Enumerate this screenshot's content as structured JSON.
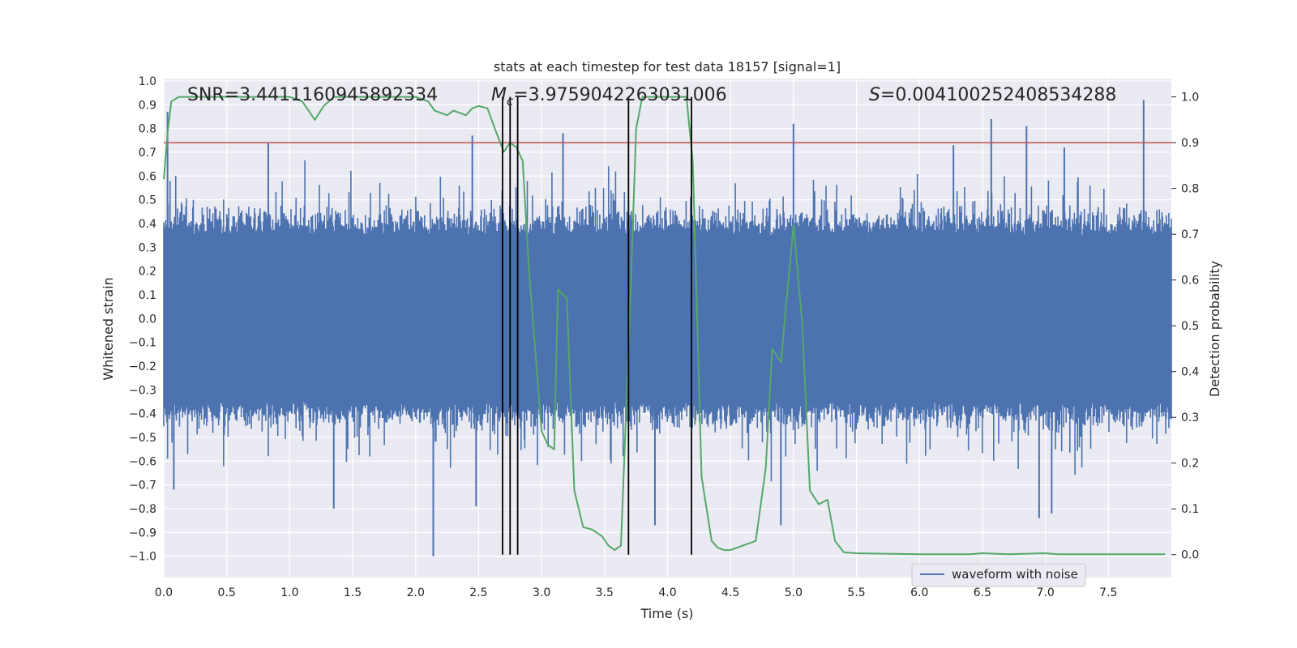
{
  "chart_data": {
    "type": "line",
    "title": "stats at each timestep for test data 18157 [signal=1]",
    "xlabel": "Time (s)",
    "ylabel": "Whitened strain",
    "y2label": "Detection probability",
    "xlim": [
      0.0,
      8.0
    ],
    "ylim": [
      -1.09,
      1.01
    ],
    "y2lim": [
      -0.05,
      1.04
    ],
    "x_ticks": [
      "0.0",
      "0.5",
      "1.0",
      "1.5",
      "2.0",
      "2.5",
      "3.0",
      "3.5",
      "4.0",
      "4.5",
      "5.0",
      "5.5",
      "6.0",
      "6.5",
      "7.0",
      "7.5"
    ],
    "y_ticks": [
      "1.0",
      "0.9",
      "0.8",
      "0.7",
      "0.6",
      "0.5",
      "0.4",
      "0.3",
      "0.2",
      "0.1",
      "0.0",
      "−0.1",
      "−0.2",
      "−0.3",
      "−0.4",
      "−0.5",
      "−0.6",
      "−0.7",
      "−0.8",
      "−0.9",
      "−1.0"
    ],
    "y2_ticks": [
      "1.0",
      "0.9",
      "0.8",
      "0.7",
      "0.6",
      "0.5",
      "0.4",
      "0.3",
      "0.2",
      "0.1",
      "0.0"
    ],
    "annotations": {
      "snr": "SNR=3.4411160945892334",
      "mc_symbol": "M",
      "mc_sub": "c",
      "mc_value": "=3.9759042263031006",
      "s_symbol": "S",
      "s_value": "=0.004100252408534288"
    },
    "legend": {
      "label": "waveform with noise",
      "position": "lower-right"
    },
    "threshold": {
      "value": 0.9,
      "axis": "y2",
      "color": "#c44e52"
    },
    "vertical_markers": [
      2.69,
      2.75,
      2.81,
      3.69,
      4.19
    ],
    "waveform": {
      "name": "waveform with noise",
      "color": "#4c72b0",
      "x_range": [
        0.0,
        8.0
      ],
      "core_amplitude": 0.35,
      "typical_peak": 0.55,
      "notable_peaks": [
        {
          "x": 0.03,
          "y": 0.87
        },
        {
          "x": 0.83,
          "y": 0.74
        },
        {
          "x": 2.45,
          "y": 0.77
        },
        {
          "x": 3.17,
          "y": 0.78
        },
        {
          "x": 5.0,
          "y": 0.82
        },
        {
          "x": 6.27,
          "y": 0.73
        },
        {
          "x": 6.57,
          "y": 0.84
        },
        {
          "x": 6.85,
          "y": 0.81
        },
        {
          "x": 7.15,
          "y": 0.72
        },
        {
          "x": 7.78,
          "y": 0.92
        },
        {
          "x": 2.14,
          "y": -1.0
        },
        {
          "x": 1.35,
          "y": -0.8
        },
        {
          "x": 3.9,
          "y": -0.87
        },
        {
          "x": 4.9,
          "y": -0.87
        },
        {
          "x": 7.05,
          "y": -0.82
        },
        {
          "x": 6.95,
          "y": -0.84
        },
        {
          "x": 2.48,
          "y": -0.79
        },
        {
          "x": 0.08,
          "y": -0.72
        }
      ]
    },
    "series": [
      {
        "name": "Detection probability",
        "axis": "y2",
        "color": "#55a868",
        "x": [
          0.0,
          0.03,
          0.06,
          0.12,
          0.25,
          0.5,
          0.75,
          1.0,
          1.1,
          1.2,
          1.27,
          1.35,
          1.5,
          1.75,
          2.0,
          2.1,
          2.15,
          2.25,
          2.3,
          2.4,
          2.45,
          2.5,
          2.57,
          2.63,
          2.7,
          2.75,
          2.8,
          2.85,
          2.9,
          3.0,
          3.05,
          3.1,
          3.13,
          3.2,
          3.26,
          3.33,
          3.4,
          3.48,
          3.53,
          3.58,
          3.63,
          3.7,
          3.75,
          3.8,
          3.85,
          3.9,
          4.0,
          4.15,
          4.2,
          4.27,
          4.35,
          4.4,
          4.45,
          4.5,
          4.6,
          4.7,
          4.78,
          4.83,
          4.9,
          5.0,
          5.07,
          5.13,
          5.2,
          5.27,
          5.33,
          5.4,
          5.5,
          6.0,
          6.4,
          6.5,
          6.7,
          7.0,
          7.1,
          7.3,
          7.5,
          7.7,
          7.95
        ],
        "values": [
          0.82,
          0.92,
          0.99,
          1.0,
          1.0,
          1.0,
          1.0,
          1.0,
          0.99,
          0.95,
          0.98,
          1.0,
          1.0,
          1.0,
          1.0,
          0.99,
          0.97,
          0.96,
          0.97,
          0.96,
          0.975,
          0.98,
          0.975,
          0.93,
          0.88,
          0.9,
          0.89,
          0.86,
          0.62,
          0.27,
          0.24,
          0.23,
          0.58,
          0.56,
          0.14,
          0.06,
          0.055,
          0.04,
          0.02,
          0.01,
          0.02,
          0.52,
          0.93,
          1.0,
          1.0,
          1.0,
          1.0,
          1.0,
          0.86,
          0.17,
          0.03,
          0.015,
          0.01,
          0.01,
          0.02,
          0.03,
          0.19,
          0.45,
          0.42,
          0.72,
          0.5,
          0.14,
          0.11,
          0.12,
          0.03,
          0.005,
          0.003,
          0.001,
          0.001,
          0.003,
          0.001,
          0.003,
          0.001,
          0.001,
          0.001,
          0.001,
          0.001
        ]
      }
    ]
  }
}
